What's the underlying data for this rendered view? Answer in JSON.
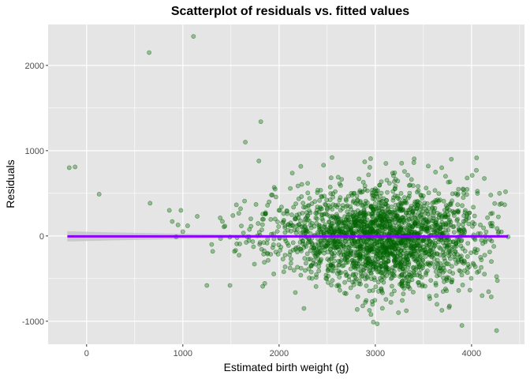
{
  "chart_data": {
    "type": "scatter",
    "title": "Scatterplot of residuals vs. fitted values",
    "xlabel": "Estimated birth weight (g)",
    "ylabel": "Residuals",
    "xlim": [
      -400,
      4550
    ],
    "ylim": [
      -1270,
      2480
    ],
    "x_ticks": [
      0,
      1000,
      2000,
      3000,
      4000
    ],
    "x_tick_labels": [
      "0",
      "1000",
      "2000",
      "3000",
      "4000"
    ],
    "y_ticks": [
      -1000,
      0,
      1000,
      2000
    ],
    "y_tick_labels": [
      "-1000",
      "0",
      "1000",
      "2000"
    ],
    "grid": true,
    "colors": {
      "panel_background": "#e5e5e5",
      "grid": "#ffffff",
      "points": "#006400",
      "smooth_line": "#8a00ff",
      "confidence_band": "#c0c0c0"
    },
    "smooth": {
      "method": "linear fit with confidence band",
      "x": [
        -200,
        4380
      ],
      "y": [
        -5,
        -5
      ],
      "band_halfwidth_ends": 60,
      "band_halfwidth_center": 12
    },
    "points": [
      {
        "x": -180,
        "y": 800
      },
      {
        "x": -120,
        "y": 810
      },
      {
        "x": 130,
        "y": 490
      },
      {
        "x": 650,
        "y": 2150
      },
      {
        "x": 1110,
        "y": 2340
      },
      {
        "x": 660,
        "y": 385
      },
      {
        "x": 860,
        "y": 300
      },
      {
        "x": 980,
        "y": 300
      },
      {
        "x": 890,
        "y": 170
      },
      {
        "x": 950,
        "y": 130
      },
      {
        "x": 1000,
        "y": 50
      },
      {
        "x": 930,
        "y": -10
      },
      {
        "x": 1050,
        "y": 120
      },
      {
        "x": 1150,
        "y": 230
      },
      {
        "x": 1250,
        "y": -580
      },
      {
        "x": 1490,
        "y": -580
      },
      {
        "x": 1300,
        "y": -100
      },
      {
        "x": 1310,
        "y": -180
      },
      {
        "x": 1650,
        "y": 1100
      },
      {
        "x": 1810,
        "y": 1340
      },
      {
        "x": 1790,
        "y": 880
      },
      {
        "x": 1830,
        "y": -590
      },
      {
        "x": 1760,
        "y": 370
      },
      {
        "x": 1600,
        "y": 320
      },
      {
        "x": 1520,
        "y": 240
      },
      {
        "x": 1950,
        "y": 570
      },
      {
        "x": 1920,
        "y": 480
      },
      {
        "x": 1880,
        "y": 360
      },
      {
        "x": 2550,
        "y": 920
      },
      {
        "x": 2890,
        "y": 870
      },
      {
        "x": 3790,
        "y": 900
      },
      {
        "x": 4050,
        "y": 770
      },
      {
        "x": 4290,
        "y": 500
      },
      {
        "x": 4200,
        "y": 480
      },
      {
        "x": 4310,
        "y": 380
      },
      {
        "x": 4380,
        "y": -10
      },
      {
        "x": 4110,
        "y": -700
      },
      {
        "x": 3900,
        "y": -1050
      },
      {
        "x": 4260,
        "y": -1110
      },
      {
        "x": 2980,
        "y": -1010
      },
      {
        "x": 3020,
        "y": -1030
      },
      {
        "x": 3240,
        "y": -900
      },
      {
        "x": 2870,
        "y": -820
      },
      {
        "x": 3110,
        "y": 850
      },
      {
        "x": 3400,
        "y": 860
      },
      {
        "x": 3550,
        "y": 820
      },
      {
        "x": 3690,
        "y": 800
      },
      {
        "x": 3730,
        "y": 700
      }
    ],
    "density_clusters": [
      {
        "cx": 3150,
        "cy": -20,
        "sx": 420,
        "sy": 300,
        "n": 1700,
        "seed": 7
      },
      {
        "cx": 2550,
        "cy": 0,
        "sx": 300,
        "sy": 250,
        "n": 240,
        "seed": 13
      },
      {
        "cx": 2150,
        "cy": 30,
        "sx": 280,
        "sy": 230,
        "n": 110,
        "seed": 23
      },
      {
        "cx": 1750,
        "cy": 20,
        "sx": 300,
        "sy": 180,
        "n": 45,
        "seed": 31
      },
      {
        "cx": 3950,
        "cy": 0,
        "sx": 200,
        "sy": 280,
        "n": 90,
        "seed": 41
      }
    ]
  }
}
